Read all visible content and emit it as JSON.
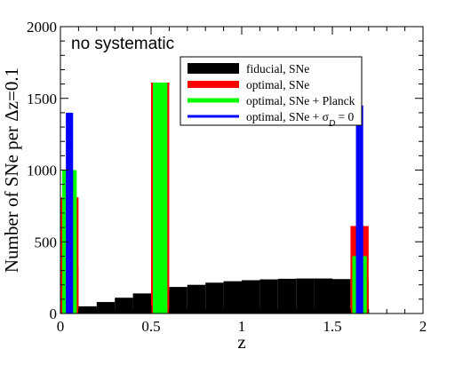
{
  "chart_data": {
    "type": "bar",
    "xlabel": "z",
    "ylabel": "Number of SNe per Δz=0.1",
    "xlim": [
      0,
      2
    ],
    "ylim": [
      0,
      2000
    ],
    "x_ticks": [
      "0",
      "0.5",
      "1",
      "1.5",
      "2"
    ],
    "y_ticks": [
      "0",
      "500",
      "1000",
      "1500",
      "2000"
    ],
    "annotation": "no systematic",
    "legend_position": "upper-right",
    "series": [
      {
        "name": "fiducial, SNe",
        "color": "#000000",
        "bins": [
          {
            "x0": 0.0,
            "x1": 0.1,
            "value": 330
          },
          {
            "x0": 0.1,
            "x1": 0.2,
            "value": 50
          },
          {
            "x0": 0.2,
            "x1": 0.3,
            "value": 80
          },
          {
            "x0": 0.3,
            "x1": 0.4,
            "value": 110
          },
          {
            "x0": 0.4,
            "x1": 0.5,
            "value": 140
          },
          {
            "x0": 0.5,
            "x1": 0.6,
            "value": 165
          },
          {
            "x0": 0.6,
            "x1": 0.7,
            "value": 185
          },
          {
            "x0": 0.7,
            "x1": 0.8,
            "value": 200
          },
          {
            "x0": 0.8,
            "x1": 0.9,
            "value": 215
          },
          {
            "x0": 0.9,
            "x1": 1.0,
            "value": 225
          },
          {
            "x0": 1.0,
            "x1": 1.1,
            "value": 232
          },
          {
            "x0": 1.1,
            "x1": 1.2,
            "value": 238
          },
          {
            "x0": 1.2,
            "x1": 1.3,
            "value": 242
          },
          {
            "x0": 1.3,
            "x1": 1.4,
            "value": 244
          },
          {
            "x0": 1.4,
            "x1": 1.5,
            "value": 244
          },
          {
            "x0": 1.5,
            "x1": 1.6,
            "value": 240
          },
          {
            "x0": 1.6,
            "x1": 1.7,
            "value": 232
          }
        ]
      },
      {
        "name": "optimal, SNe",
        "color": "#ff0000",
        "bins": [
          {
            "x0": 0.0,
            "x1": 0.1,
            "value": 810
          },
          {
            "x0": 0.5,
            "x1": 0.6,
            "value": 1610
          },
          {
            "x0": 1.6,
            "x1": 1.7,
            "value": 610
          }
        ]
      },
      {
        "name": "optimal, SNe + Planck",
        "color": "#00ff00",
        "bins": [
          {
            "x0": 0.01,
            "x1": 0.09,
            "value": 1000
          },
          {
            "x0": 0.51,
            "x1": 0.59,
            "value": 1610
          },
          {
            "x0": 1.61,
            "x1": 1.69,
            "value": 400
          }
        ]
      },
      {
        "name": "optimal, SNe + σ",
        "name_sub": "D",
        "name_suffix": " = 0",
        "color": "#0000ff",
        "bins": [
          {
            "x0": 0.03,
            "x1": 0.07,
            "value": 1400
          },
          {
            "x0": 1.63,
            "x1": 1.67,
            "value": 1450
          }
        ]
      }
    ]
  }
}
